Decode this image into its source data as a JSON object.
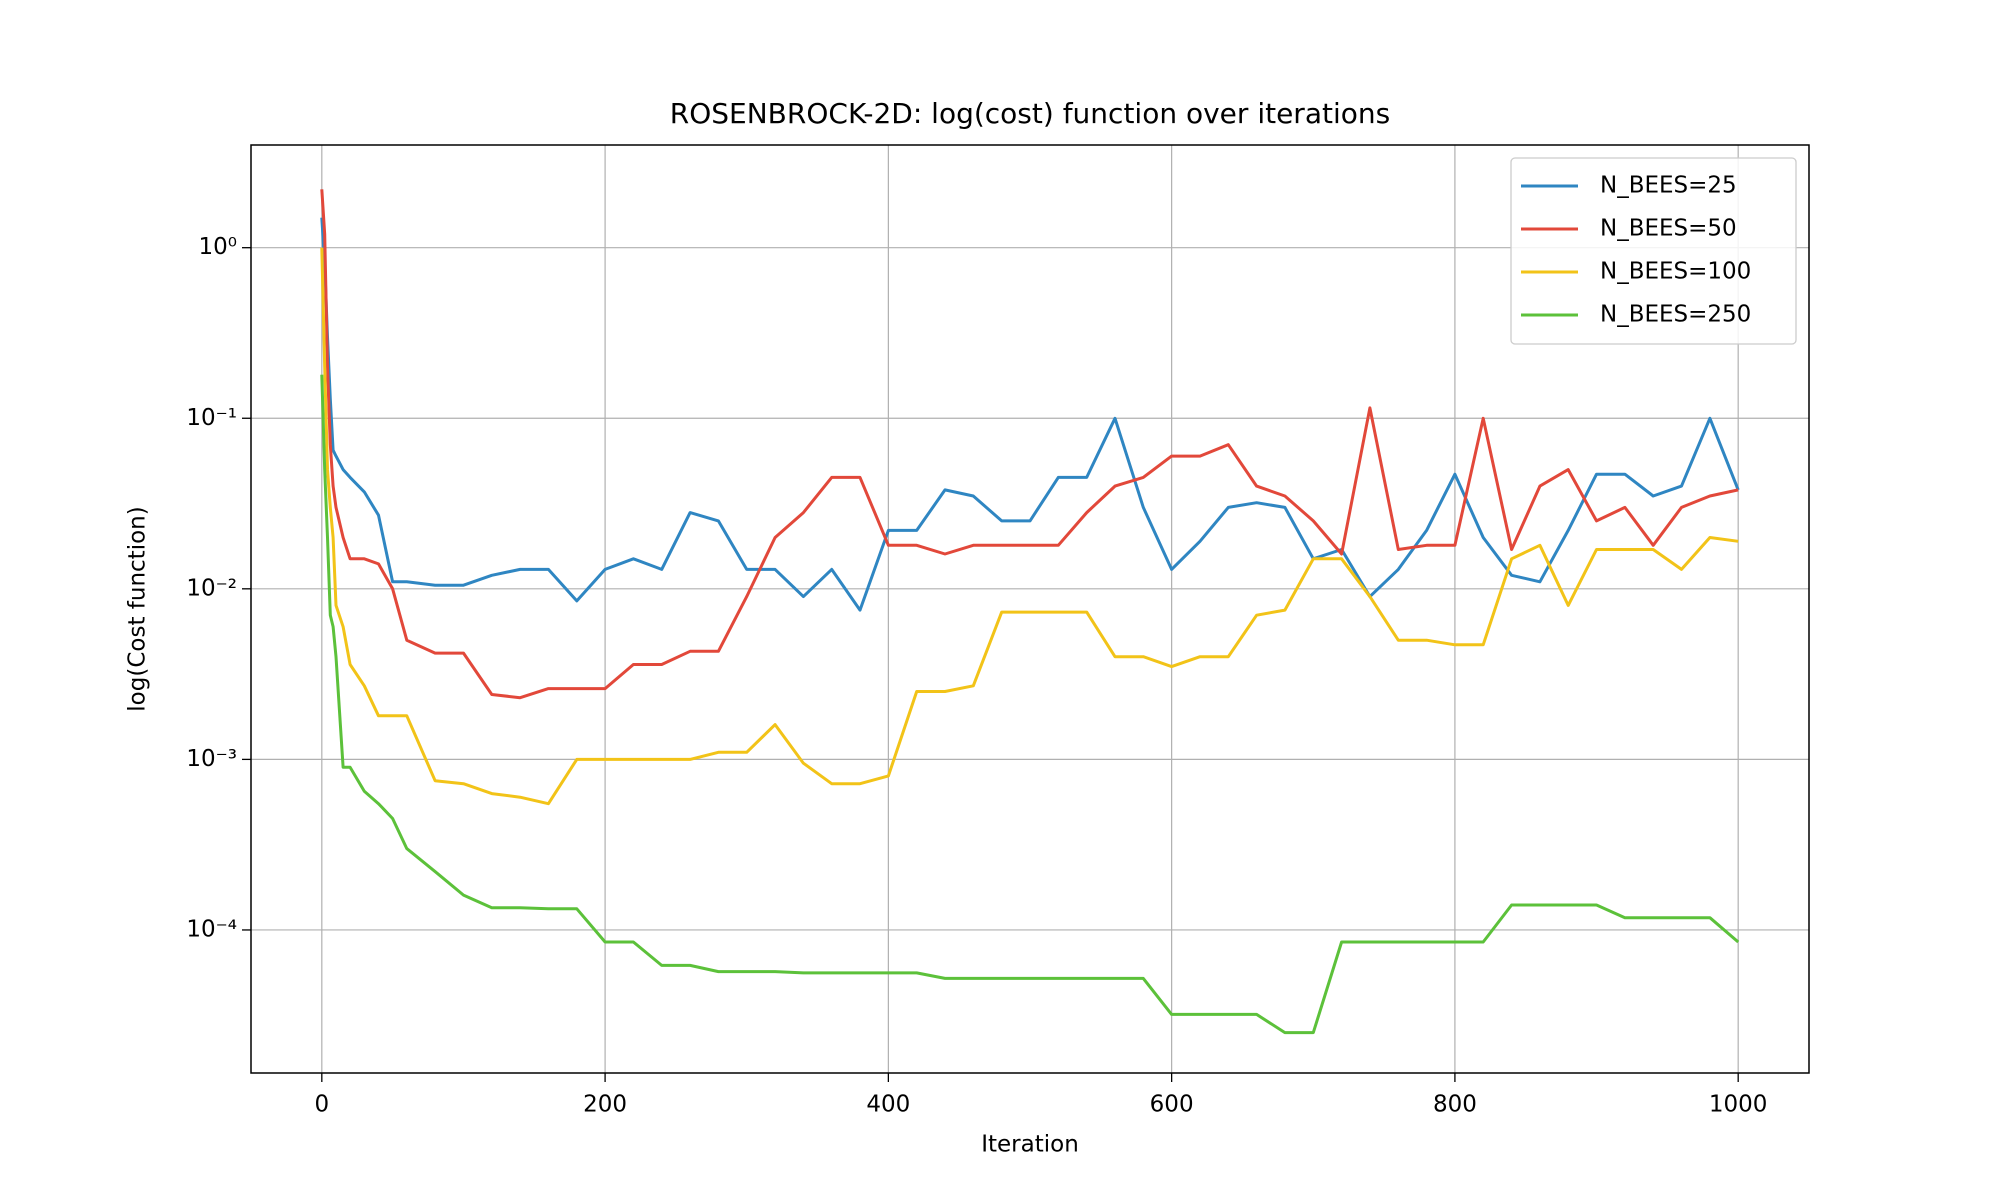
{
  "chart_data": {
    "type": "line",
    "title": "ROSENBROCK-2D: log(cost) function over iterations",
    "x_label": "Iteration",
    "y_label": "log(Cost function)",
    "y_scale": "log",
    "grid": true,
    "legend": "upper right",
    "xlim": [
      -50,
      1050
    ],
    "ylim": [
      1.45e-05,
      4
    ],
    "xticks": [
      0,
      200,
      400,
      600,
      800,
      1000
    ],
    "yticks": [
      {
        "value": 1,
        "label": "10⁰"
      },
      {
        "value": 0.1,
        "label": "10⁻¹"
      },
      {
        "value": 0.01,
        "label": "10⁻²"
      },
      {
        "value": 0.001,
        "label": "10⁻³"
      },
      {
        "value": 0.0001,
        "label": "10⁻⁴"
      }
    ],
    "x": [
      0,
      2,
      4,
      6,
      8,
      10,
      15,
      20,
      30,
      40,
      50,
      60,
      80,
      100,
      120,
      140,
      160,
      180,
      200,
      220,
      240,
      260,
      280,
      300,
      320,
      340,
      360,
      380,
      400,
      420,
      440,
      460,
      480,
      500,
      520,
      540,
      560,
      580,
      600,
      620,
      640,
      660,
      680,
      700,
      720,
      740,
      760,
      780,
      800,
      820,
      840,
      860,
      880,
      900,
      920,
      940,
      960,
      980,
      1000
    ],
    "series": [
      {
        "name": "N_BEES=25",
        "color": "#2f86c2",
        "values": [
          1.5,
          0.8,
          0.3,
          0.13,
          0.065,
          0.06,
          0.05,
          0.045,
          0.037,
          0.027,
          0.011,
          0.011,
          0.0105,
          0.0105,
          0.012,
          0.013,
          0.013,
          0.0085,
          0.013,
          0.015,
          0.013,
          0.028,
          0.025,
          0.013,
          0.013,
          0.009,
          0.013,
          0.0075,
          0.022,
          0.022,
          0.038,
          0.035,
          0.025,
          0.025,
          0.045,
          0.045,
          0.1,
          0.03,
          0.013,
          0.019,
          0.03,
          0.032,
          0.03,
          0.015,
          0.017,
          0.009,
          0.013,
          0.022,
          0.047,
          0.02,
          0.012,
          0.011,
          0.022,
          0.047,
          0.047,
          0.035,
          0.04,
          0.1,
          0.038
        ]
      },
      {
        "name": "N_BEES=50",
        "color": "#e2483a",
        "values": [
          2.2,
          1.2,
          0.2,
          0.07,
          0.04,
          0.03,
          0.02,
          0.015,
          0.015,
          0.014,
          0.01,
          0.005,
          0.0042,
          0.0042,
          0.0024,
          0.0023,
          0.0026,
          0.0026,
          0.0026,
          0.0036,
          0.0036,
          0.0043,
          0.0043,
          0.009,
          0.02,
          0.028,
          0.045,
          0.045,
          0.018,
          0.018,
          0.016,
          0.018,
          0.018,
          0.018,
          0.018,
          0.028,
          0.04,
          0.045,
          0.06,
          0.06,
          0.07,
          0.04,
          0.035,
          0.025,
          0.016,
          0.115,
          0.017,
          0.018,
          0.018,
          0.1,
          0.017,
          0.04,
          0.05,
          0.025,
          0.03,
          0.018,
          0.03,
          0.035,
          0.038
        ]
      },
      {
        "name": "N_BEES=100",
        "color": "#f2c318",
        "values": [
          1.0,
          0.2,
          0.05,
          0.03,
          0.02,
          0.008,
          0.006,
          0.0036,
          0.0027,
          0.0018,
          0.0018,
          0.0018,
          0.00075,
          0.00072,
          0.00063,
          0.0006,
          0.00055,
          0.001,
          0.001,
          0.001,
          0.001,
          0.001,
          0.0011,
          0.0011,
          0.0016,
          0.00095,
          0.00072,
          0.00072,
          0.0008,
          0.0025,
          0.0025,
          0.0027,
          0.0073,
          0.0073,
          0.0073,
          0.0073,
          0.004,
          0.004,
          0.0035,
          0.004,
          0.004,
          0.007,
          0.0075,
          0.015,
          0.015,
          0.009,
          0.005,
          0.005,
          0.0047,
          0.0047,
          0.015,
          0.018,
          0.008,
          0.017,
          0.017,
          0.017,
          0.013,
          0.02,
          0.019
        ]
      },
      {
        "name": "N_BEES=250",
        "color": "#5cc13a",
        "values": [
          0.18,
          0.05,
          0.02,
          0.007,
          0.006,
          0.004,
          0.0009,
          0.0009,
          0.00065,
          0.00055,
          0.00045,
          0.0003,
          0.00022,
          0.00016,
          0.000135,
          0.000135,
          0.000133,
          0.000133,
          8.5e-05,
          8.5e-05,
          6.2e-05,
          6.2e-05,
          5.7e-05,
          5.7e-05,
          5.7e-05,
          5.6e-05,
          5.6e-05,
          5.6e-05,
          5.6e-05,
          5.6e-05,
          5.2e-05,
          5.2e-05,
          5.2e-05,
          5.2e-05,
          5.2e-05,
          5.2e-05,
          5.2e-05,
          5.2e-05,
          3.2e-05,
          3.2e-05,
          3.2e-05,
          3.2e-05,
          2.5e-05,
          2.5e-05,
          8.5e-05,
          8.5e-05,
          8.5e-05,
          8.5e-05,
          8.5e-05,
          8.5e-05,
          0.00014,
          0.00014,
          0.00014,
          0.00014,
          0.000118,
          0.000118,
          0.000118,
          0.000118,
          8.5e-05
        ]
      }
    ]
  }
}
